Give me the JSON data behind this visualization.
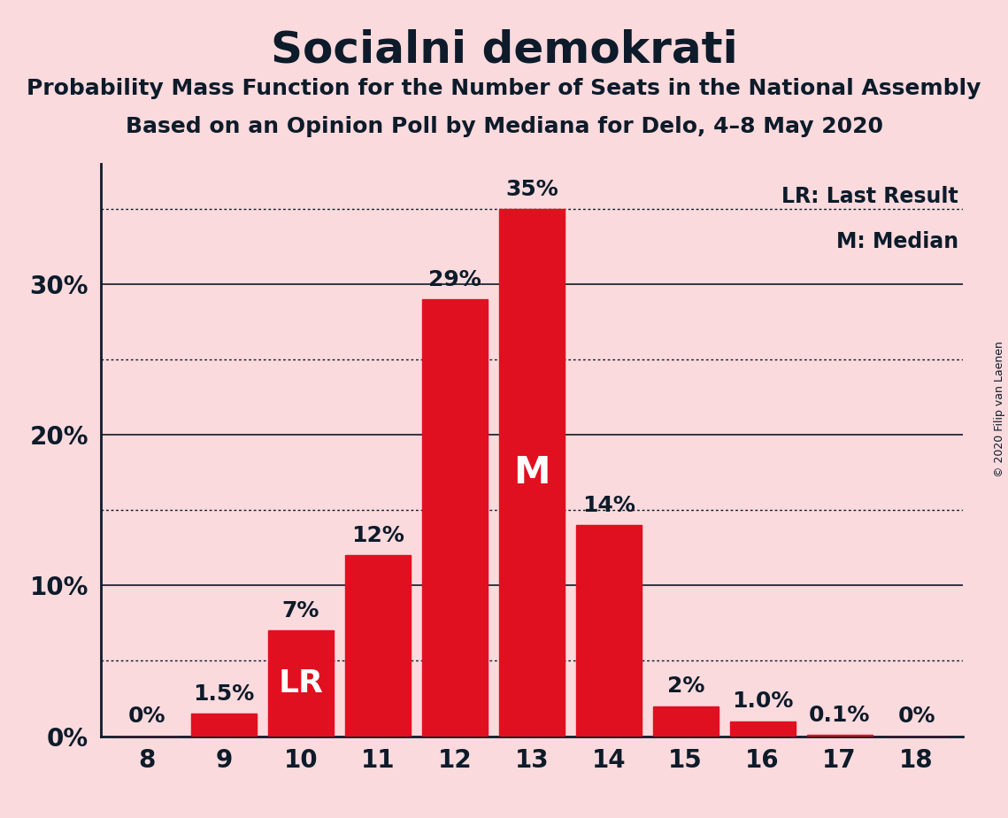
{
  "title": "Socialni demokrati",
  "subtitle1": "Probability Mass Function for the Number of Seats in the National Assembly",
  "subtitle2": "Based on an Opinion Poll by Mediana for Delo, 4–8 May 2020",
  "copyright": "© 2020 Filip van Laenen",
  "categories": [
    8,
    9,
    10,
    11,
    12,
    13,
    14,
    15,
    16,
    17,
    18
  ],
  "values": [
    0.0,
    1.5,
    7.0,
    12.0,
    29.0,
    35.0,
    14.0,
    2.0,
    1.0,
    0.1,
    0.0
  ],
  "bar_labels": [
    "0%",
    "1.5%",
    "7%",
    "12%",
    "29%",
    "35%",
    "14%",
    "2%",
    "1.0%",
    "0.1%",
    "0%"
  ],
  "bar_color": "#E01020",
  "background_color": "#FADADD",
  "label_color_dark": "#0D1B2A",
  "label_color_light": "#FFFFFF",
  "lr_bar_index": 2,
  "median_bar_index": 5,
  "solid_gridlines": [
    10,
    20,
    30
  ],
  "dotted_gridlines": [
    5,
    15,
    25,
    35
  ],
  "yticks": [
    0,
    10,
    20,
    30
  ],
  "ylim": [
    0,
    38
  ],
  "title_fontsize": 36,
  "subtitle_fontsize": 18,
  "bar_label_fontsize": 18,
  "axis_label_fontsize": 20,
  "legend_fontsize": 17
}
